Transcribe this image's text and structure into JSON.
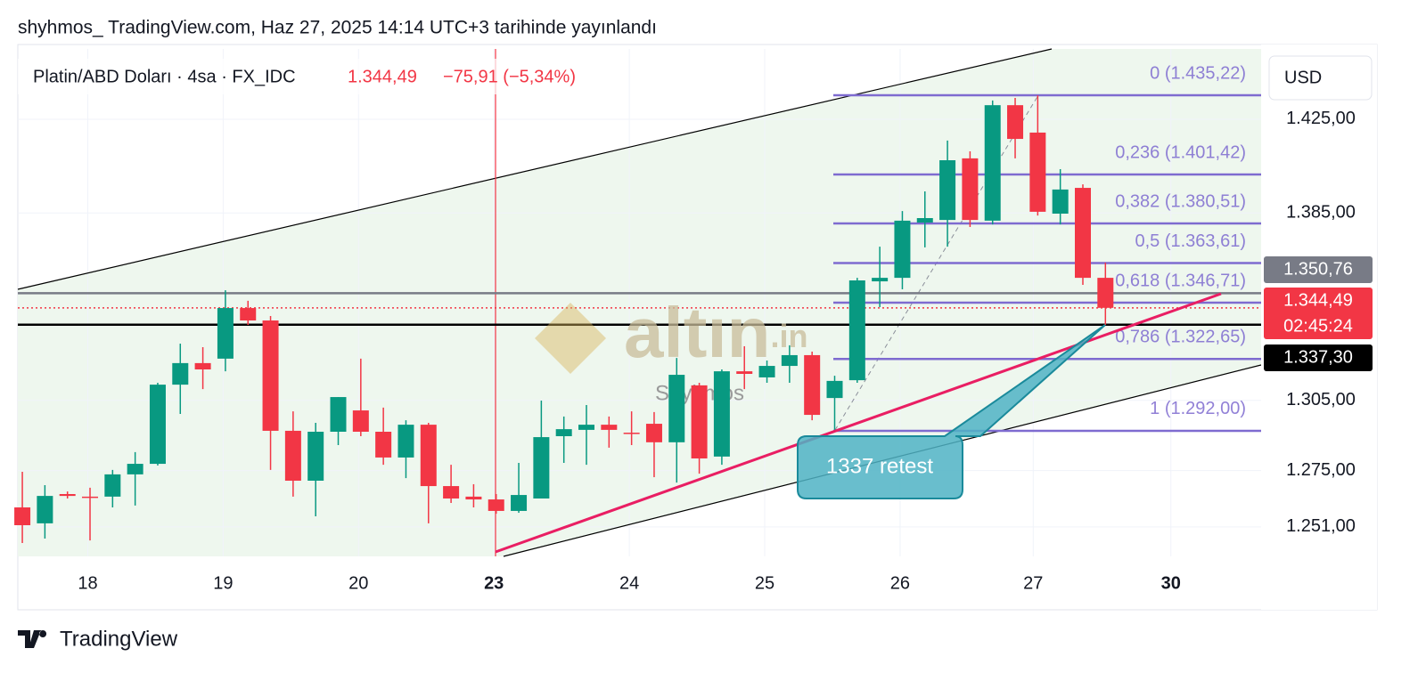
{
  "header": {
    "published": "shyhmos_ TradingView.com, Haz 27, 2025 14:14 UTC+3 tarihinde yayınlandı",
    "symbol": "Platin/ABD Doları · 4sa · FX_IDC",
    "price": "1.344,49",
    "change": "−75,91 (−5,34%)"
  },
  "chart_data": {
    "type": "candlestick",
    "currency": "USD",
    "up_color": "#089981",
    "down_color": "#f23645",
    "open": [
      1259.3,
      1252.5,
      1265.0,
      1263.9,
      1263.9,
      1273.4,
      1277.9,
      1311.7,
      1320.9,
      1322.8,
      1344.4,
      1339.1,
      1292.0,
      1270.7,
      1291.6,
      1300.7,
      1291.6,
      1280.6,
      1294.6,
      1268.4,
      1263.9,
      1262.7,
      1257.8,
      1263.1,
      1289.7,
      1292.4,
      1294.6,
      1291.2,
      1295.0,
      1287.1,
      1311.4,
      1281.0,
      1317.4,
      1314.8,
      1319.7,
      1324.3,
      1306.0,
      1313.6,
      1355.8,
      1357.3,
      1380.9,
      1382.0,
      1408.3,
      1381.7,
      1431.0,
      1419.3,
      1384.7,
      1395.7,
      1357.3
    ],
    "high": [
      1274.5,
      1268.8,
      1266.1,
      1267.7,
      1275.3,
      1282.9,
      1312.5,
      1329.2,
      1327.7,
      1352.0,
      1347.5,
      1341.0,
      1300.3,
      1295.4,
      1306.4,
      1322.8,
      1301.9,
      1296.5,
      1295.4,
      1277.5,
      1269.2,
      1265.0,
      1278.3,
      1304.9,
      1298.1,
      1303.0,
      1298.1,
      1300.3,
      1300.0,
      1323.1,
      1312.5,
      1318.2,
      1328.1,
      1322.0,
      1328.5,
      1325.8,
      1315.5,
      1357.3,
      1370.6,
      1385.8,
      1394.2,
      1415.9,
      1411.3,
      1433.0,
      1434.1,
      1435.2,
      1403.7,
      1397.2,
      1363.8
    ],
    "low": [
      1244.1,
      1246.0,
      1263.1,
      1245.2,
      1259.3,
      1260.1,
      1277.2,
      1299.2,
      1309.8,
      1317.4,
      1337.2,
      1275.3,
      1263.9,
      1255.5,
      1285.9,
      1289.7,
      1277.5,
      1271.8,
      1252.5,
      1261.2,
      1259.3,
      1256.6,
      1257.0,
      1263.1,
      1278.3,
      1277.5,
      1284.8,
      1285.9,
      1272.2,
      1269.9,
      1273.7,
      1277.5,
      1309.8,
      1312.5,
      1312.5,
      1296.5,
      1292.4,
      1312.5,
      1344.8,
      1352.4,
      1370.3,
      1370.6,
      1379.0,
      1380.1,
      1408.3,
      1383.9,
      1380.1,
      1354.3,
      1337.2
    ],
    "close": [
      1251.7,
      1264.2,
      1264.2,
      1263.5,
      1273.4,
      1277.9,
      1311.7,
      1320.9,
      1318.2,
      1344.4,
      1339.1,
      1292.0,
      1270.7,
      1291.6,
      1306.4,
      1291.6,
      1280.6,
      1294.6,
      1268.4,
      1263.1,
      1262.7,
      1257.8,
      1264.6,
      1289.3,
      1292.7,
      1294.6,
      1292.4,
      1290.8,
      1287.1,
      1315.9,
      1280.2,
      1317.4,
      1316.3,
      1319.7,
      1324.3,
      1298.8,
      1313.3,
      1356.2,
      1357.3,
      1381.7,
      1382.8,
      1407.5,
      1382.0,
      1431.0,
      1416.6,
      1385.5,
      1395.0,
      1357.3,
      1344.49
    ],
    "xlim": [
      -0.2,
      54.9
    ],
    "xticks": [
      {
        "value": 2.9,
        "label": "18"
      },
      {
        "value": 8.9,
        "label": "19"
      },
      {
        "value": 14.9,
        "label": "20"
      },
      {
        "value": 20.9,
        "label": "23",
        "bold": true
      },
      {
        "value": 26.9,
        "label": "24"
      },
      {
        "value": 32.9,
        "label": "25"
      },
      {
        "value": 38.9,
        "label": "26"
      },
      {
        "value": 44.8,
        "label": "27"
      },
      {
        "value": 50.9,
        "label": "30",
        "bold": true
      }
    ],
    "ylim": [
      1238.4,
      1455
    ],
    "yticks": [
      {
        "value": 1425,
        "label": "1.425,00"
      },
      {
        "value": 1385,
        "label": "1.385,00"
      },
      {
        "value": 1305,
        "label": "1.305,00"
      },
      {
        "value": 1275,
        "label": "1.275,00"
      },
      {
        "value": 1251,
        "label": "1.251,00"
      }
    ],
    "fib_levels": [
      {
        "value": 1435.22,
        "label": "0 (1.435,22)"
      },
      {
        "value": 1401.42,
        "label": "0,236 (1.401,42)"
      },
      {
        "value": 1380.51,
        "label": "0,382 (1.380,51)"
      },
      {
        "value": 1363.61,
        "label": "0,5 (1.363,61)"
      },
      {
        "value": 1346.71,
        "label": "0,618 (1.346,71)"
      },
      {
        "value": 1322.65,
        "label": "0,786 (1.322,65)"
      },
      {
        "value": 1292.0,
        "label": "1 (1.292,00)"
      }
    ],
    "fib_color": "#7e6bd0",
    "price_tags": [
      {
        "value": 1350.76,
        "label": "1.350,76",
        "color": "#787b86"
      },
      {
        "value": 1344.49,
        "label": "1.344,49",
        "color": "#f23645"
      },
      {
        "value": 1337.3,
        "label": "1.337,30",
        "color": "#000000"
      }
    ],
    "countdown": "02:45:24",
    "annotation": "1337 retest",
    "watermark": {
      "brand": "altın",
      "suffix": ".in",
      "author": "Shyhmos"
    }
  },
  "footer": {
    "brand": "TradingView"
  }
}
